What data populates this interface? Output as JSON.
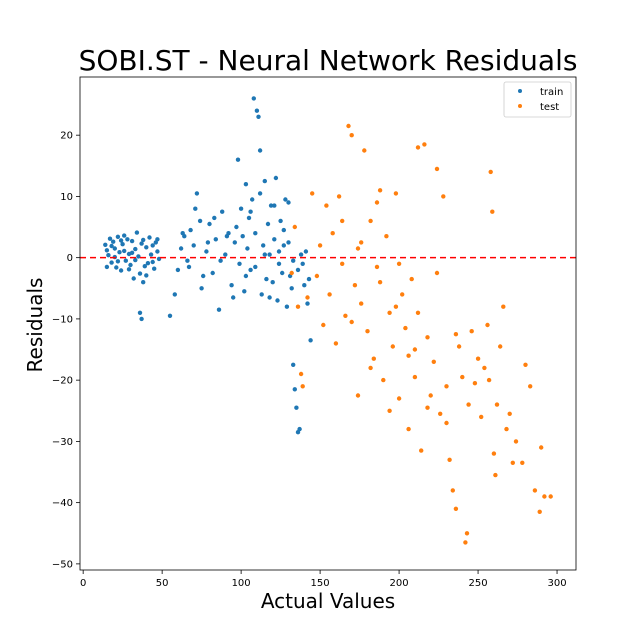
{
  "chart_data": {
    "type": "scatter",
    "title": "SOBI.ST - Neural Network Residuals",
    "xlabel": "Actual Values",
    "ylabel": "Residuals",
    "xlim": [
      -2,
      312
    ],
    "ylim": [
      -51,
      29.5
    ],
    "xticks": [
      0,
      50,
      100,
      150,
      200,
      250,
      300
    ],
    "yticks": [
      -50,
      -40,
      -30,
      -20,
      -10,
      0,
      10,
      20
    ],
    "grid": false,
    "legend_position": "top-right",
    "reference_line": {
      "y": 0,
      "style": "dashed",
      "color": "#ff0000"
    },
    "series": [
      {
        "name": "train",
        "color": "#1f77b4",
        "points": [
          [
            14,
            2.1
          ],
          [
            15,
            1.2
          ],
          [
            16,
            0.4
          ],
          [
            17,
            3.1
          ],
          [
            18,
            -0.8
          ],
          [
            19,
            2.6
          ],
          [
            20,
            1.5
          ],
          [
            21,
            -1.6
          ],
          [
            22,
            3.4
          ],
          [
            23,
            0.9
          ],
          [
            24,
            -2.1
          ],
          [
            25,
            2.2
          ],
          [
            26,
            1.1
          ],
          [
            27,
            -0.5
          ],
          [
            28,
            3.0
          ],
          [
            29,
            0.6
          ],
          [
            30,
            -1.2
          ],
          [
            31,
            2.7
          ],
          [
            32,
            -3.4
          ],
          [
            33,
            1.4
          ],
          [
            34,
            4.1
          ],
          [
            35,
            0.2
          ],
          [
            36,
            -2.6
          ],
          [
            36,
            -9.0
          ],
          [
            37,
            -10.0
          ],
          [
            38,
            2.9
          ],
          [
            39,
            -1.4
          ],
          [
            40,
            1.7
          ],
          [
            41,
            -0.9
          ],
          [
            42,
            3.3
          ],
          [
            43,
            0.5
          ],
          [
            44,
            2.0
          ],
          [
            45,
            -1.8
          ],
          [
            46,
            2.5
          ],
          [
            47,
            1.0
          ],
          [
            48,
            -0.2
          ],
          [
            15,
            -1.5
          ],
          [
            18,
            1.9
          ],
          [
            22,
            -0.6
          ],
          [
            26,
            3.6
          ],
          [
            29,
            -1.9
          ],
          [
            33,
            -0.4
          ],
          [
            37,
            2.3
          ],
          [
            40,
            -2.9
          ],
          [
            44,
            -0.7
          ],
          [
            47,
            3.0
          ],
          [
            20,
            0.1
          ],
          [
            24,
            2.8
          ],
          [
            31,
            0.8
          ],
          [
            38,
            -4.0
          ],
          [
            55,
            -9.5
          ],
          [
            58,
            -6.0
          ],
          [
            60,
            -2.0
          ],
          [
            62,
            1.5
          ],
          [
            64,
            3.5
          ],
          [
            66,
            -0.5
          ],
          [
            68,
            4.5
          ],
          [
            70,
            2.0
          ],
          [
            72,
            10.5
          ],
          [
            74,
            6.0
          ],
          [
            76,
            -3.0
          ],
          [
            78,
            1.0
          ],
          [
            80,
            5.5
          ],
          [
            82,
            -2.5
          ],
          [
            84,
            3.0
          ],
          [
            86,
            -8.5
          ],
          [
            88,
            7.5
          ],
          [
            90,
            0.5
          ],
          [
            92,
            4.0
          ],
          [
            94,
            -4.5
          ],
          [
            96,
            2.5
          ],
          [
            98,
            16.0
          ],
          [
            99,
            -1.0
          ],
          [
            100,
            8.0
          ],
          [
            101,
            3.5
          ],
          [
            102,
            -5.5
          ],
          [
            103,
            12.0
          ],
          [
            104,
            1.5
          ],
          [
            105,
            6.5
          ],
          [
            106,
            -2.0
          ],
          [
            107,
            9.5
          ],
          [
            108,
            26.0
          ],
          [
            109,
            4.0
          ],
          [
            110,
            24.0
          ],
          [
            111,
            23.0
          ],
          [
            112,
            17.5
          ],
          [
            113,
            -6.0
          ],
          [
            114,
            2.0
          ],
          [
            115,
            12.5
          ],
          [
            116,
            -3.5
          ],
          [
            117,
            5.5
          ],
          [
            118,
            0.5
          ],
          [
            119,
            8.5
          ],
          [
            120,
            -4.0
          ],
          [
            121,
            3.0
          ],
          [
            122,
            13.0
          ],
          [
            123,
            -7.0
          ],
          [
            124,
            1.0
          ],
          [
            125,
            6.0
          ],
          [
            126,
            -2.5
          ],
          [
            127,
            4.5
          ],
          [
            128,
            9.5
          ],
          [
            129,
            -8.0
          ],
          [
            130,
            2.5
          ],
          [
            131,
            -3.0
          ],
          [
            132,
            -5.0
          ],
          [
            133,
            -17.5
          ],
          [
            134,
            -21.5
          ],
          [
            135,
            -24.5
          ],
          [
            136,
            -28.5
          ],
          [
            137,
            -28.0
          ],
          [
            138,
            0.5
          ],
          [
            140,
            -4.5
          ],
          [
            142,
            -7.5
          ],
          [
            144,
            -13.5
          ],
          [
            63,
            4.0
          ],
          [
            67,
            -1.5
          ],
          [
            71,
            8.0
          ],
          [
            75,
            -5.0
          ],
          [
            79,
            2.5
          ],
          [
            83,
            6.5
          ],
          [
            87,
            -0.5
          ],
          [
            91,
            3.5
          ],
          [
            95,
            -6.5
          ],
          [
            97,
            5.0
          ],
          [
            103,
            -3.0
          ],
          [
            106,
            7.5
          ],
          [
            109,
            -1.5
          ],
          [
            112,
            10.5
          ],
          [
            115,
            0.5
          ],
          [
            118,
            -6.5
          ],
          [
            121,
            8.5
          ],
          [
            124,
            -1.0
          ],
          [
            127,
            2.0
          ],
          [
            130,
            9.0
          ],
          [
            133,
            -0.5
          ],
          [
            136,
            -2.0
          ],
          [
            139,
            -1.0
          ],
          [
            141,
            1.0
          ],
          [
            143,
            -3.5
          ]
        ]
      },
      {
        "name": "test",
        "color": "#ff7f0e",
        "points": [
          [
            132,
            -2.5
          ],
          [
            134,
            5.0
          ],
          [
            136,
            -8.0
          ],
          [
            138,
            -19.0
          ],
          [
            139,
            -21.0
          ],
          [
            142,
            -6.5
          ],
          [
            145,
            10.5
          ],
          [
            148,
            -3.0
          ],
          [
            150,
            2.0
          ],
          [
            152,
            -11.0
          ],
          [
            154,
            8.5
          ],
          [
            156,
            -6.0
          ],
          [
            158,
            4.0
          ],
          [
            160,
            -14.0
          ],
          [
            162,
            10.0
          ],
          [
            164,
            -1.0
          ],
          [
            166,
            -9.5
          ],
          [
            168,
            21.5
          ],
          [
            170,
            20.0
          ],
          [
            172,
            -4.5
          ],
          [
            174,
            1.5
          ],
          [
            176,
            -7.5
          ],
          [
            178,
            17.5
          ],
          [
            180,
            -12.0
          ],
          [
            182,
            6.0
          ],
          [
            184,
            -16.5
          ],
          [
            186,
            -1.5
          ],
          [
            188,
            11.0
          ],
          [
            190,
            -20.0
          ],
          [
            192,
            3.5
          ],
          [
            194,
            -9.0
          ],
          [
            196,
            -14.5
          ],
          [
            198,
            10.5
          ],
          [
            200,
            -23.0
          ],
          [
            202,
            -6.0
          ],
          [
            204,
            -11.5
          ],
          [
            206,
            -28.0
          ],
          [
            208,
            -3.5
          ],
          [
            210,
            -19.5
          ],
          [
            212,
            18.0
          ],
          [
            214,
            -31.5
          ],
          [
            216,
            18.5
          ],
          [
            218,
            -13.0
          ],
          [
            220,
            -22.5
          ],
          [
            222,
            -17.0
          ],
          [
            224,
            14.5
          ],
          [
            226,
            -25.5
          ],
          [
            228,
            10.0
          ],
          [
            230,
            -27.0
          ],
          [
            232,
            -33.0
          ],
          [
            234,
            -38.0
          ],
          [
            236,
            -41.0
          ],
          [
            238,
            -14.5
          ],
          [
            240,
            -19.5
          ],
          [
            242,
            -46.5
          ],
          [
            243,
            -45.0
          ],
          [
            244,
            -24.0
          ],
          [
            246,
            -12.0
          ],
          [
            248,
            -20.5
          ],
          [
            250,
            -16.5
          ],
          [
            252,
            -26.0
          ],
          [
            254,
            -18.0
          ],
          [
            256,
            -11.0
          ],
          [
            257,
            -20.0
          ],
          [
            258,
            14.0
          ],
          [
            259,
            7.5
          ],
          [
            260,
            -32.0
          ],
          [
            261,
            -35.5
          ],
          [
            262,
            -24.0
          ],
          [
            264,
            -14.5
          ],
          [
            266,
            -8.0
          ],
          [
            268,
            -28.0
          ],
          [
            270,
            -25.5
          ],
          [
            272,
            -33.5
          ],
          [
            274,
            -30.0
          ],
          [
            278,
            -33.5
          ],
          [
            280,
            -17.5
          ],
          [
            283,
            -21.0
          ],
          [
            286,
            -38.0
          ],
          [
            289,
            -41.5
          ],
          [
            290,
            -31.0
          ],
          [
            292,
            -39.0
          ],
          [
            296,
            -39.0
          ],
          [
            170,
            -10.5
          ],
          [
            176,
            2.5
          ],
          [
            182,
            -18.0
          ],
          [
            188,
            -4.0
          ],
          [
            194,
            -25.0
          ],
          [
            200,
            -1.0
          ],
          [
            206,
            -16.0
          ],
          [
            212,
            -9.0
          ],
          [
            218,
            -24.5
          ],
          [
            224,
            -2.5
          ],
          [
            230,
            -21.0
          ],
          [
            236,
            -12.5
          ],
          [
            164,
            6.0
          ],
          [
            174,
            -22.5
          ],
          [
            186,
            9.0
          ],
          [
            198,
            -8.0
          ],
          [
            210,
            -15.0
          ]
        ]
      }
    ]
  }
}
